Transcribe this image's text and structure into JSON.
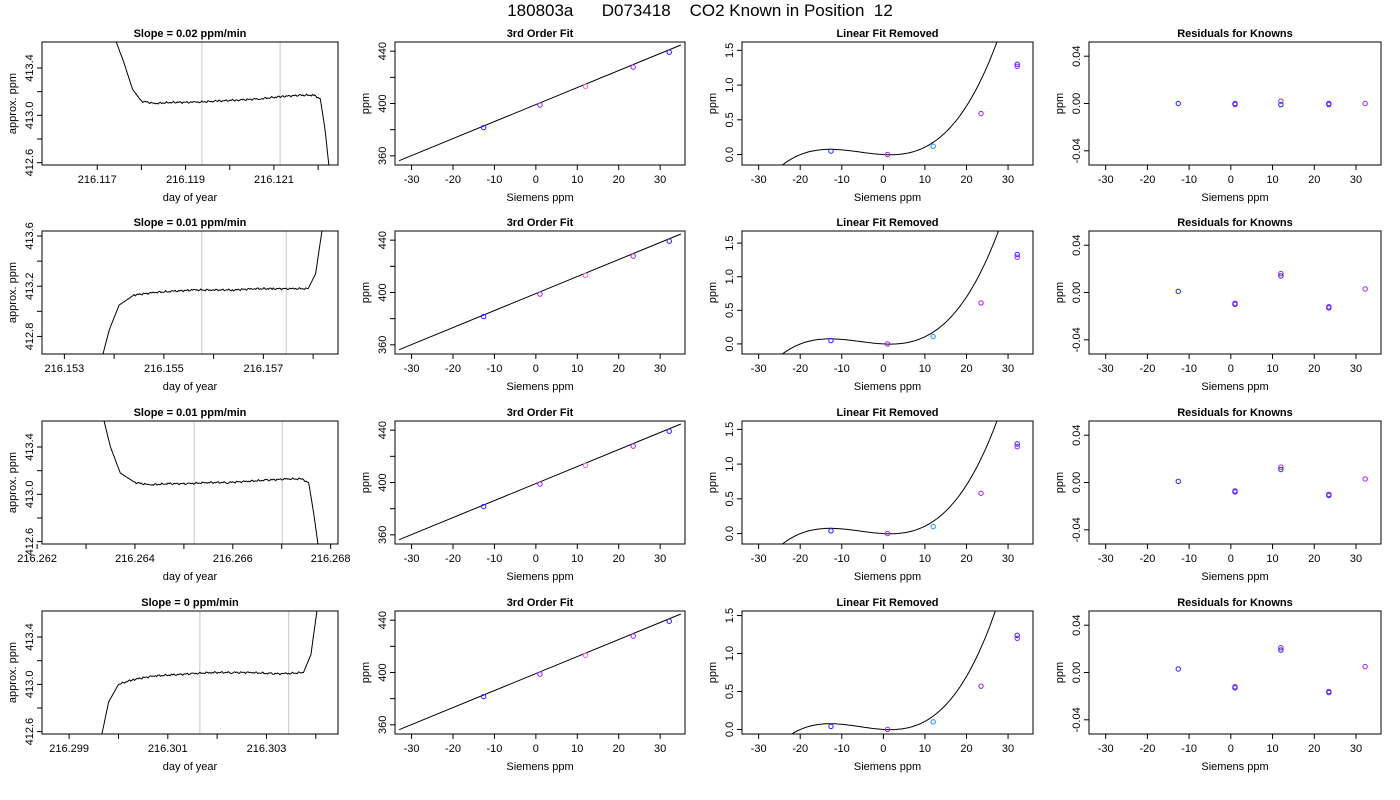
{
  "page": {
    "title": "180803a      D073418    CO2 Known in Position  12"
  },
  "colors": {
    "frame": "#000000",
    "curve": "#000000",
    "marker_line": "#c8c8c8",
    "point_blue": "#2222ff",
    "point_purple": "#a020f0",
    "point_cyan": "#1e90ff",
    "point_pink": "#ff66cc"
  },
  "chart_data": [
    {
      "type": "line",
      "row": 0,
      "panel": "trace",
      "title": "Slope =  0.02  ppm/min",
      "xlabel": "day of year",
      "ylabel": "approx. ppm",
      "xlim": [
        216.11575,
        216.12245
      ],
      "ylim": [
        412.58,
        413.62
      ],
      "xticks": [
        216.117,
        216.118,
        216.119,
        216.12,
        216.121,
        216.122
      ],
      "xticklabels": [
        "216.117",
        "",
        "216.119",
        "",
        "216.121",
        ""
      ],
      "yticks": [
        412.6,
        412.8,
        413.0,
        413.2,
        413.4
      ],
      "yticklabels": [
        "412.6",
        "",
        "413.0",
        "",
        "413.4"
      ],
      "markers": [
        216.11937,
        216.12114
      ],
      "series": [
        {
          "x": [
            216.1174,
            216.1176,
            216.1178,
            216.118,
            216.1183,
            216.1187,
            216.1192,
            216.1197,
            216.1202,
            216.1207,
            216.1212,
            216.1216,
            216.1219,
            216.12205,
            216.12215,
            216.12225
          ],
          "y": [
            413.65,
            413.45,
            413.22,
            413.12,
            413.1,
            413.11,
            413.11,
            413.12,
            413.13,
            413.14,
            413.16,
            413.17,
            413.17,
            413.14,
            412.9,
            412.55
          ]
        }
      ]
    },
    {
      "type": "scatter",
      "row": 0,
      "panel": "fit",
      "title": "3rd Order Fit",
      "xlabel": "Siemens ppm",
      "ylabel": "ppm",
      "xlim": [
        -34,
        36
      ],
      "ylim": [
        353,
        447
      ],
      "xticks": [
        -30,
        -20,
        -10,
        0,
        10,
        20,
        30
      ],
      "yticks": [
        360,
        380,
        400,
        420,
        440
      ],
      "yticklabels": [
        "360",
        "",
        "400",
        "",
        "440"
      ],
      "line": {
        "x": [
          -33,
          35
        ],
        "y": [
          356.3,
          444.7
        ]
      },
      "points": [
        {
          "x": -12.6,
          "y": 381.6
        },
        {
          "x": 1.0,
          "y": 398.8
        },
        {
          "x": 12.0,
          "y": 413.1
        },
        {
          "x": 23.5,
          "y": 427.8
        },
        {
          "x": 32.2,
          "y": 439.2
        }
      ]
    },
    {
      "type": "scatter",
      "row": 0,
      "panel": "lin",
      "title": "Linear Fit Removed",
      "xlabel": "Siemens ppm",
      "ylabel": "ppm",
      "xlim": [
        -34,
        36
      ],
      "ylim": [
        -0.15,
        1.62
      ],
      "xticks": [
        -30,
        -20,
        -10,
        0,
        10,
        20,
        30
      ],
      "yticks": [
        0,
        0.5,
        1.0,
        1.5
      ],
      "yticklabels": [
        "0.0",
        "0.5",
        "1.0",
        "1.5"
      ],
      "cubic": {
        "a": 5.19e-05,
        "b": 0.000871,
        "c": -0.00326,
        "d": 0.0
      },
      "points": [
        {
          "x": -12.6,
          "y": 0.05
        },
        {
          "x": 1.0,
          "y": 0.0
        },
        {
          "x": 12.0,
          "y": 0.12
        },
        {
          "x": 23.5,
          "y": 0.59
        },
        {
          "x": 32.2,
          "y": 1.3
        },
        {
          "x": 32.2,
          "y": 1.27
        }
      ]
    },
    {
      "type": "scatter",
      "row": 0,
      "panel": "res",
      "title": "Residuals for Knowns",
      "xlabel": "Siemens ppm",
      "ylabel": "ppm",
      "xlim": [
        -34,
        36
      ],
      "ylim": [
        -0.052,
        0.052
      ],
      "xticks": [
        -30,
        -20,
        -10,
        0,
        10,
        20,
        30
      ],
      "yticks": [
        -0.04,
        0,
        0.04
      ],
      "yticklabels": [
        "-0.04",
        "0.00",
        "0.04"
      ],
      "points": [
        {
          "x": -12.6,
          "y": 0.0
        },
        {
          "x": 1.0,
          "y": -0.001
        },
        {
          "x": 1.0,
          "y": 0.0
        },
        {
          "x": 12.0,
          "y": 0.002
        },
        {
          "x": 12.0,
          "y": -0.001
        },
        {
          "x": 23.5,
          "y": -0.001
        },
        {
          "x": 23.5,
          "y": 0.0
        },
        {
          "x": 32.2,
          "y": 0.0
        }
      ]
    },
    {
      "type": "line",
      "row": 1,
      "panel": "trace",
      "title": "Slope =  0.01  ppm/min",
      "xlabel": "day of year",
      "ylabel": "approx. ppm",
      "xlim": [
        216.15255,
        216.1585
      ],
      "ylim": [
        412.66,
        413.64
      ],
      "xticks": [
        216.153,
        216.154,
        216.155,
        216.156,
        216.157,
        216.158
      ],
      "xticklabels": [
        "216.153",
        "",
        "216.155",
        "",
        "216.157",
        ""
      ],
      "yticks": [
        412.8,
        413.0,
        413.2,
        413.4,
        413.6
      ],
      "yticklabels": [
        "412.8",
        "",
        "413.2",
        "",
        "413.6"
      ],
      "markers": [
        216.15576,
        216.15746
      ],
      "series": [
        {
          "x": [
            216.15375,
            216.1539,
            216.1541,
            216.1544,
            216.1548,
            216.1552,
            216.1556,
            216.156,
            216.1564,
            216.1568,
            216.1572,
            216.1576,
            216.1579,
            216.15805,
            216.1582
          ],
          "y": [
            412.62,
            412.85,
            413.05,
            413.13,
            413.15,
            413.16,
            413.17,
            413.17,
            413.17,
            413.18,
            413.18,
            413.18,
            413.18,
            413.3,
            413.7
          ]
        }
      ]
    },
    {
      "type": "scatter",
      "row": 1,
      "panel": "fit",
      "title": "3rd Order Fit",
      "xlabel": "Siemens ppm",
      "ylabel": "ppm",
      "xlim": [
        -34,
        36
      ],
      "ylim": [
        353,
        447
      ],
      "xticks": [
        -30,
        -20,
        -10,
        0,
        10,
        20,
        30
      ],
      "yticks": [
        360,
        380,
        400,
        420,
        440
      ],
      "yticklabels": [
        "360",
        "",
        "400",
        "",
        "440"
      ],
      "line": {
        "x": [
          -33,
          35
        ],
        "y": [
          356.3,
          444.7
        ]
      },
      "points": [
        {
          "x": -12.6,
          "y": 381.6
        },
        {
          "x": 1.0,
          "y": 398.8
        },
        {
          "x": 12.0,
          "y": 413.1
        },
        {
          "x": 23.5,
          "y": 427.8
        },
        {
          "x": 32.2,
          "y": 439.2
        }
      ]
    },
    {
      "type": "scatter",
      "row": 1,
      "panel": "lin",
      "title": "Linear Fit Removed",
      "xlabel": "Siemens ppm",
      "ylabel": "ppm",
      "xlim": [
        -34,
        36
      ],
      "ylim": [
        -0.15,
        1.68
      ],
      "xticks": [
        -30,
        -20,
        -10,
        0,
        10,
        20,
        30
      ],
      "yticks": [
        0,
        0.5,
        1.0,
        1.5
      ],
      "yticklabels": [
        "0.0",
        "0.5",
        "1.0",
        "1.5"
      ],
      "cubic": {
        "a": 5.19e-05,
        "b": 0.000871,
        "c": -0.00326,
        "d": 0.0
      },
      "points": [
        {
          "x": -12.6,
          "y": 0.05
        },
        {
          "x": 1.0,
          "y": 0.0
        },
        {
          "x": 12.0,
          "y": 0.11
        },
        {
          "x": 23.5,
          "y": 0.61
        },
        {
          "x": 32.2,
          "y": 1.33
        },
        {
          "x": 32.2,
          "y": 1.29
        }
      ]
    },
    {
      "type": "scatter",
      "row": 1,
      "panel": "res",
      "title": "Residuals for Knowns",
      "xlabel": "Siemens ppm",
      "ylabel": "ppm",
      "xlim": [
        -34,
        36
      ],
      "ylim": [
        -0.052,
        0.052
      ],
      "xticks": [
        -30,
        -20,
        -10,
        0,
        10,
        20,
        30
      ],
      "yticks": [
        -0.04,
        0,
        0.04
      ],
      "yticklabels": [
        "-0.04",
        "0.00",
        "0.04"
      ],
      "points": [
        {
          "x": -12.6,
          "y": 0.001
        },
        {
          "x": 1.0,
          "y": -0.009
        },
        {
          "x": 1.0,
          "y": -0.01
        },
        {
          "x": 12.0,
          "y": 0.016
        },
        {
          "x": 12.0,
          "y": 0.014
        },
        {
          "x": 23.5,
          "y": -0.012
        },
        {
          "x": 23.5,
          "y": -0.013
        },
        {
          "x": 32.2,
          "y": 0.003
        }
      ]
    },
    {
      "type": "line",
      "row": 2,
      "panel": "trace",
      "title": "Slope =  0.01  ppm/min",
      "xlabel": "day of year",
      "ylabel": "approx. ppm",
      "xlim": [
        216.2621,
        216.26815
      ],
      "ylim": [
        412.58,
        413.62
      ],
      "xticks": [
        216.262,
        216.263,
        216.264,
        216.265,
        216.266,
        216.267,
        216.268
      ],
      "xticklabels": [
        "216.262",
        "",
        "216.264",
        "",
        "216.266",
        "",
        "216.268"
      ],
      "yticks": [
        412.6,
        412.8,
        413.0,
        413.2,
        413.4
      ],
      "yticklabels": [
        "412.6",
        "",
        "413.0",
        "",
        "413.4"
      ],
      "markers": [
        216.26521,
        216.26701
      ],
      "series": [
        {
          "x": [
            216.26335,
            216.2635,
            216.2637,
            216.264,
            216.2643,
            216.2647,
            216.2651,
            216.2655,
            216.2659,
            216.2663,
            216.2667,
            216.2671,
            216.2674,
            216.26755,
            216.26765,
            216.26775
          ],
          "y": [
            413.65,
            413.4,
            413.18,
            413.1,
            413.08,
            413.09,
            413.09,
            413.1,
            413.1,
            413.11,
            413.12,
            413.13,
            413.13,
            413.1,
            412.85,
            412.55
          ]
        }
      ]
    },
    {
      "type": "scatter",
      "row": 2,
      "panel": "fit",
      "title": "3rd Order Fit",
      "xlabel": "Siemens ppm",
      "ylabel": "ppm",
      "xlim": [
        -34,
        36
      ],
      "ylim": [
        353,
        447
      ],
      "xticks": [
        -30,
        -20,
        -10,
        0,
        10,
        20,
        30
      ],
      "yticks": [
        360,
        380,
        400,
        420,
        440
      ],
      "yticklabels": [
        "360",
        "",
        "400",
        "",
        "440"
      ],
      "line": {
        "x": [
          -33,
          35
        ],
        "y": [
          356.3,
          444.7
        ]
      },
      "points": [
        {
          "x": -12.6,
          "y": 381.6
        },
        {
          "x": 1.0,
          "y": 398.8
        },
        {
          "x": 12.0,
          "y": 413.1
        },
        {
          "x": 23.5,
          "y": 427.8
        },
        {
          "x": 32.2,
          "y": 439.2
        }
      ]
    },
    {
      "type": "scatter",
      "row": 2,
      "panel": "lin",
      "title": "Linear Fit Removed",
      "xlabel": "Siemens ppm",
      "ylabel": "ppm",
      "xlim": [
        -34,
        36
      ],
      "ylim": [
        -0.15,
        1.62
      ],
      "xticks": [
        -30,
        -20,
        -10,
        0,
        10,
        20,
        30
      ],
      "yticks": [
        0,
        0.5,
        1.0,
        1.5
      ],
      "yticklabels": [
        "0.0",
        "0.5",
        "1.0",
        "1.5"
      ],
      "cubic": {
        "a": 5.19e-05,
        "b": 0.000871,
        "c": -0.00326,
        "d": 0.0
      },
      "points": [
        {
          "x": -12.6,
          "y": 0.04
        },
        {
          "x": 1.0,
          "y": 0.0
        },
        {
          "x": 12.0,
          "y": 0.1
        },
        {
          "x": 23.5,
          "y": 0.58
        },
        {
          "x": 32.2,
          "y": 1.29
        },
        {
          "x": 32.2,
          "y": 1.25
        }
      ]
    },
    {
      "type": "scatter",
      "row": 2,
      "panel": "res",
      "title": "Residuals for Knowns",
      "xlabel": "Siemens ppm",
      "ylabel": "ppm",
      "xlim": [
        -34,
        36
      ],
      "ylim": [
        -0.052,
        0.052
      ],
      "xticks": [
        -30,
        -20,
        -10,
        0,
        10,
        20,
        30
      ],
      "yticks": [
        -0.04,
        0,
        0.04
      ],
      "yticklabels": [
        "-0.04",
        "0.00",
        "0.04"
      ],
      "points": [
        {
          "x": -12.6,
          "y": 0.001
        },
        {
          "x": 1.0,
          "y": -0.007
        },
        {
          "x": 1.0,
          "y": -0.008
        },
        {
          "x": 12.0,
          "y": 0.013
        },
        {
          "x": 12.0,
          "y": 0.011
        },
        {
          "x": 23.5,
          "y": -0.01
        },
        {
          "x": 23.5,
          "y": -0.011
        },
        {
          "x": 32.2,
          "y": 0.003
        }
      ]
    },
    {
      "type": "line",
      "row": 3,
      "panel": "trace",
      "title": "Slope =  0  ppm/min",
      "xlabel": "day of year",
      "ylabel": "approx. ppm",
      "xlim": [
        216.29845,
        216.30445
      ],
      "ylim": [
        412.58,
        413.62
      ],
      "xticks": [
        216.299,
        216.3,
        216.301,
        216.302,
        216.303,
        216.304
      ],
      "xticklabels": [
        "216.299",
        "",
        "216.301",
        "",
        "216.303",
        ""
      ],
      "yticks": [
        412.6,
        412.8,
        413.0,
        413.2,
        413.4
      ],
      "yticklabels": [
        "412.6",
        "",
        "413.0",
        "",
        "413.4"
      ],
      "markers": [
        216.30165,
        216.30345
      ],
      "series": [
        {
          "x": [
            216.29965,
            216.2998,
            216.3,
            216.3003,
            216.3007,
            216.3011,
            216.3015,
            216.3019,
            216.3023,
            216.3027,
            216.3031,
            216.3034,
            216.30375,
            216.3039,
            216.30405
          ],
          "y": [
            412.55,
            412.85,
            413.0,
            413.04,
            413.07,
            413.08,
            413.09,
            413.1,
            413.1,
            413.1,
            413.09,
            413.09,
            413.1,
            413.25,
            413.7
          ]
        }
      ]
    },
    {
      "type": "scatter",
      "row": 3,
      "panel": "fit",
      "title": "3rd Order Fit",
      "xlabel": "Siemens ppm",
      "ylabel": "ppm",
      "xlim": [
        -34,
        36
      ],
      "ylim": [
        353,
        447
      ],
      "xticks": [
        -30,
        -20,
        -10,
        0,
        10,
        20,
        30
      ],
      "yticks": [
        360,
        380,
        400,
        420,
        440
      ],
      "yticklabels": [
        "360",
        "",
        "400",
        "",
        "440"
      ],
      "line": {
        "x": [
          -33,
          35
        ],
        "y": [
          356.3,
          444.7
        ]
      },
      "points": [
        {
          "x": -12.6,
          "y": 381.6
        },
        {
          "x": 1.0,
          "y": 398.8
        },
        {
          "x": 12.0,
          "y": 413.1
        },
        {
          "x": 23.5,
          "y": 427.8
        },
        {
          "x": 32.2,
          "y": 439.2
        }
      ]
    },
    {
      "type": "scatter",
      "row": 3,
      "panel": "lin",
      "title": "Linear Fit Removed",
      "xlabel": "Siemens ppm",
      "ylabel": "ppm",
      "xlim": [
        -34,
        36
      ],
      "ylim": [
        -0.06,
        1.56
      ],
      "xticks": [
        -30,
        -20,
        -10,
        0,
        10,
        20,
        30
      ],
      "yticks": [
        0,
        0.5,
        1.0,
        1.5
      ],
      "yticklabels": [
        "0.0",
        "0.5",
        "1.0",
        "1.5"
      ],
      "cubic": {
        "a": 5.19e-05,
        "b": 0.000871,
        "c": -0.00326,
        "d": 0.0
      },
      "points": [
        {
          "x": -12.6,
          "y": 0.04
        },
        {
          "x": 1.0,
          "y": 0.0
        },
        {
          "x": 12.0,
          "y": 0.1
        },
        {
          "x": 23.5,
          "y": 0.57
        },
        {
          "x": 32.2,
          "y": 1.24
        },
        {
          "x": 32.2,
          "y": 1.2
        }
      ]
    },
    {
      "type": "scatter",
      "row": 3,
      "panel": "res",
      "title": "Residuals for Knowns",
      "xlabel": "Siemens ppm",
      "ylabel": "ppm",
      "xlim": [
        -34,
        36
      ],
      "ylim": [
        -0.052,
        0.052
      ],
      "xticks": [
        -30,
        -20,
        -10,
        0,
        10,
        20,
        30
      ],
      "yticks": [
        -0.04,
        0,
        0.04
      ],
      "yticklabels": [
        "-0.04",
        "0.00",
        "0.04"
      ],
      "points": [
        {
          "x": -12.6,
          "y": 0.003
        },
        {
          "x": 1.0,
          "y": -0.012
        },
        {
          "x": 1.0,
          "y": -0.013
        },
        {
          "x": 12.0,
          "y": 0.021
        },
        {
          "x": 12.0,
          "y": 0.019
        },
        {
          "x": 23.5,
          "y": -0.016
        },
        {
          "x": 23.5,
          "y": -0.017
        },
        {
          "x": 32.2,
          "y": 0.005
        }
      ]
    }
  ]
}
